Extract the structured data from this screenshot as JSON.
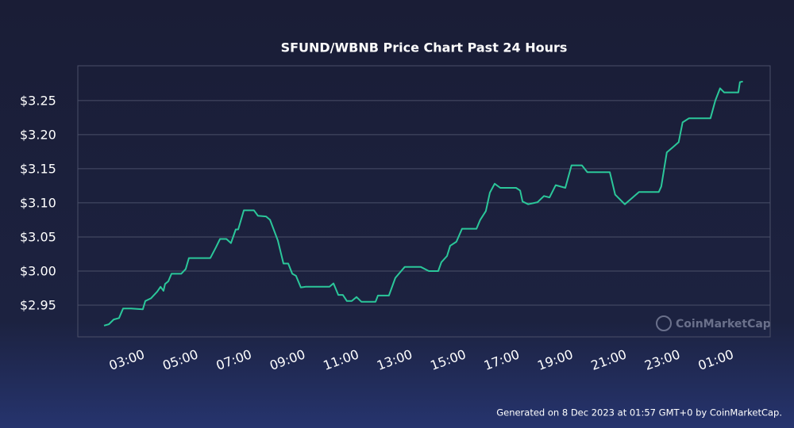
{
  "chart_data": {
    "type": "line",
    "title": "SFUND/WBNB Price Chart Past 24 Hours",
    "color": "#2bc79a",
    "grid": true,
    "x": [
      2.14,
      2.32,
      2.5,
      2.7,
      2.85,
      3.15,
      3.59,
      3.68,
      3.89,
      4.13,
      4.25,
      4.36,
      4.42,
      4.54,
      4.66,
      5.02,
      5.19,
      5.31,
      6.11,
      6.32,
      6.47,
      6.71,
      6.88,
      7.06,
      7.15,
      7.36,
      7.74,
      7.89,
      8.19,
      8.34,
      8.63,
      8.84,
      9.02,
      9.17,
      9.31,
      9.49,
      9.67,
      10.56,
      10.71,
      10.89,
      11.06,
      11.21,
      11.39,
      11.57,
      11.75,
      12.28,
      12.37,
      12.78,
      13.02,
      13.37,
      13.97,
      14.27,
      14.62,
      14.74,
      14.95,
      15.07,
      15.3,
      15.51,
      16.05,
      16.19,
      16.4,
      16.55,
      16.73,
      16.94,
      17.53,
      17.68,
      17.77,
      17.98,
      18.33,
      18.57,
      18.78,
      19.01,
      19.37,
      19.6,
      19.99,
      20.19,
      21.03,
      21.23,
      21.59,
      21.83,
      22.12,
      22.86,
      22.95,
      23.16,
      23.4,
      23.6,
      23.75,
      23.99,
      24.79,
      24.97,
      25.15,
      25.3,
      25.83,
      25.89,
      26.0
    ],
    "values": [
      2.92,
      2.922,
      2.929,
      2.931,
      2.945,
      2.945,
      2.944,
      2.956,
      2.96,
      2.97,
      2.977,
      2.971,
      2.981,
      2.985,
      2.996,
      2.996,
      3.003,
      3.019,
      3.019,
      3.035,
      3.047,
      3.047,
      3.041,
      3.061,
      3.061,
      3.089,
      3.089,
      3.081,
      3.08,
      3.075,
      3.045,
      3.011,
      3.011,
      2.996,
      2.993,
      2.976,
      2.977,
      2.977,
      2.982,
      2.965,
      2.965,
      2.956,
      2.956,
      2.962,
      2.955,
      2.955,
      2.964,
      2.964,
      2.99,
      3.006,
      3.006,
      3.0,
      3.0,
      3.013,
      3.022,
      3.037,
      3.043,
      3.062,
      3.062,
      3.075,
      3.088,
      3.115,
      3.128,
      3.122,
      3.122,
      3.118,
      3.102,
      3.098,
      3.101,
      3.11,
      3.108,
      3.126,
      3.122,
      3.155,
      3.155,
      3.145,
      3.145,
      3.112,
      3.098,
      3.106,
      3.116,
      3.116,
      3.124,
      3.174,
      3.182,
      3.189,
      3.218,
      3.224,
      3.224,
      3.25,
      3.268,
      3.262,
      3.262,
      3.277,
      3.278
    ],
    "xlim": [
      1.16,
      27.02
    ],
    "xticks": [
      {
        "value": 3,
        "label": "03:00"
      },
      {
        "value": 5,
        "label": "05:00"
      },
      {
        "value": 7,
        "label": "07:00"
      },
      {
        "value": 9,
        "label": "09:00"
      },
      {
        "value": 11,
        "label": "11:00"
      },
      {
        "value": 13,
        "label": "13:00"
      },
      {
        "value": 15,
        "label": "15:00"
      },
      {
        "value": 17,
        "label": "17:00"
      },
      {
        "value": 19,
        "label": "19:00"
      },
      {
        "value": 21,
        "label": "21:00"
      },
      {
        "value": 23,
        "label": "23:00"
      },
      {
        "value": 25,
        "label": "01:00"
      }
    ],
    "ylim": [
      2.9035,
      3.301
    ],
    "yticks": [
      {
        "value": 2.95,
        "label": "$2.95"
      },
      {
        "value": 3.0,
        "label": "$3.00"
      },
      {
        "value": 3.05,
        "label": "$3.05"
      },
      {
        "value": 3.1,
        "label": "$3.10"
      },
      {
        "value": 3.15,
        "label": "$3.15"
      },
      {
        "value": 3.2,
        "label": "$3.20"
      },
      {
        "value": 3.25,
        "label": "$3.25"
      }
    ],
    "watermark": "CoinMarketCap",
    "footer": "Generated on 8 Dec 2023 at 01:57 GMT+0 by CoinMarketCap."
  }
}
